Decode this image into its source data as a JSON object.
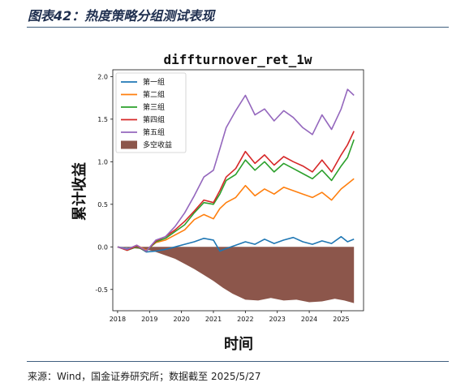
{
  "header": {
    "title": "图表42：热度策略分组测试表现"
  },
  "footer": {
    "source": "来源：Wind，国金证券研究所；数据截至 2025/5/27"
  },
  "colors": {
    "g1": "#1f77b4",
    "g2": "#ff7f0e",
    "g3": "#2ca02c",
    "g4": "#d62728",
    "g5": "#9467bd",
    "ls": "#8c564b",
    "header_rule": "#3f5f7f"
  },
  "chart_data": {
    "type": "line",
    "title": "diffturnover_ret_1w",
    "xlabel": "时间",
    "ylabel": "累计收益",
    "xlim": [
      2017.85,
      2025.7
    ],
    "ylim": [
      -0.75,
      2.08
    ],
    "x_ticks": [
      "2018",
      "2019",
      "2020",
      "2021",
      "2022",
      "2023",
      "2024",
      "2025"
    ],
    "y_ticks": [
      "-0.5",
      "0.0",
      "0.5",
      "1.0",
      "1.5",
      "2.0"
    ],
    "legend_position": "upper-left",
    "series": [
      {
        "name": "第一组",
        "kind": "line",
        "color": "#1f77b4",
        "x": [
          2018.0,
          2018.3,
          2018.6,
          2018.9,
          2019.2,
          2019.5,
          2019.8,
          2020.1,
          2020.4,
          2020.7,
          2021.0,
          2021.2,
          2021.4,
          2021.7,
          2022.0,
          2022.3,
          2022.6,
          2022.9,
          2023.2,
          2023.5,
          2023.8,
          2024.1,
          2024.4,
          2024.7,
          2025.0,
          2025.2,
          2025.4
        ],
        "y": [
          0.0,
          -0.02,
          0.01,
          -0.06,
          -0.05,
          -0.03,
          0.0,
          0.03,
          0.06,
          0.1,
          0.08,
          -0.05,
          -0.02,
          0.02,
          0.06,
          0.03,
          0.09,
          0.04,
          0.08,
          0.11,
          0.06,
          0.03,
          0.07,
          0.04,
          0.12,
          0.06,
          0.09
        ]
      },
      {
        "name": "第二组",
        "kind": "line",
        "color": "#ff7f0e",
        "x": [
          2018.0,
          2018.3,
          2018.6,
          2018.9,
          2019.2,
          2019.5,
          2019.8,
          2020.1,
          2020.4,
          2020.7,
          2021.0,
          2021.2,
          2021.4,
          2021.7,
          2022.0,
          2022.3,
          2022.6,
          2022.9,
          2023.2,
          2023.5,
          2023.8,
          2024.1,
          2024.4,
          2024.7,
          2025.0,
          2025.2,
          2025.4
        ],
        "y": [
          0.0,
          -0.03,
          0.02,
          -0.04,
          0.05,
          0.08,
          0.14,
          0.2,
          0.32,
          0.38,
          0.33,
          0.45,
          0.52,
          0.58,
          0.72,
          0.6,
          0.68,
          0.62,
          0.7,
          0.66,
          0.62,
          0.58,
          0.64,
          0.55,
          0.68,
          0.74,
          0.8
        ]
      },
      {
        "name": "第三组",
        "kind": "line",
        "color": "#2ca02c",
        "x": [
          2018.0,
          2018.3,
          2018.6,
          2018.9,
          2019.2,
          2019.5,
          2019.8,
          2020.1,
          2020.4,
          2020.7,
          2021.0,
          2021.2,
          2021.4,
          2021.7,
          2022.0,
          2022.3,
          2022.6,
          2022.9,
          2023.2,
          2023.5,
          2023.8,
          2024.1,
          2024.4,
          2024.7,
          2025.0,
          2025.2,
          2025.4
        ],
        "y": [
          0.0,
          -0.04,
          0.0,
          -0.05,
          0.06,
          0.1,
          0.18,
          0.26,
          0.4,
          0.52,
          0.5,
          0.62,
          0.78,
          0.85,
          1.02,
          0.9,
          1.0,
          0.88,
          0.98,
          0.92,
          0.86,
          0.8,
          0.9,
          0.78,
          0.95,
          1.05,
          1.26
        ]
      },
      {
        "name": "第四组",
        "kind": "line",
        "color": "#d62728",
        "x": [
          2018.0,
          2018.3,
          2018.6,
          2018.9,
          2019.2,
          2019.5,
          2019.8,
          2020.1,
          2020.4,
          2020.7,
          2021.0,
          2021.2,
          2021.4,
          2021.7,
          2022.0,
          2022.3,
          2022.6,
          2022.9,
          2023.2,
          2023.5,
          2023.8,
          2024.1,
          2024.4,
          2024.7,
          2025.0,
          2025.2,
          2025.4
        ],
        "y": [
          0.0,
          -0.04,
          0.01,
          -0.05,
          0.07,
          0.12,
          0.2,
          0.3,
          0.42,
          0.55,
          0.52,
          0.66,
          0.82,
          0.92,
          1.12,
          0.98,
          1.08,
          0.96,
          1.06,
          1.0,
          0.95,
          0.88,
          1.02,
          0.88,
          1.08,
          1.2,
          1.36
        ]
      },
      {
        "name": "第五组",
        "kind": "line",
        "color": "#9467bd",
        "x": [
          2018.0,
          2018.3,
          2018.6,
          2018.9,
          2019.2,
          2019.5,
          2019.8,
          2020.1,
          2020.4,
          2020.7,
          2021.0,
          2021.2,
          2021.4,
          2021.7,
          2022.0,
          2022.3,
          2022.6,
          2022.9,
          2023.2,
          2023.5,
          2023.8,
          2024.1,
          2024.4,
          2024.7,
          2025.0,
          2025.2,
          2025.4
        ],
        "y": [
          0.0,
          -0.03,
          0.02,
          -0.05,
          0.08,
          0.12,
          0.24,
          0.4,
          0.6,
          0.82,
          0.9,
          1.15,
          1.4,
          1.6,
          1.78,
          1.55,
          1.62,
          1.48,
          1.6,
          1.52,
          1.4,
          1.32,
          1.55,
          1.38,
          1.62,
          1.85,
          1.78
        ]
      },
      {
        "name": "多空收益",
        "kind": "area",
        "color": "#8c564b",
        "x": [
          2018.0,
          2018.3,
          2018.6,
          2018.9,
          2019.2,
          2019.5,
          2019.8,
          2020.1,
          2020.4,
          2020.7,
          2021.0,
          2021.3,
          2021.6,
          2022.0,
          2022.4,
          2022.8,
          2023.2,
          2023.6,
          2024.0,
          2024.4,
          2024.8,
          2025.1,
          2025.4
        ],
        "y": [
          0.0,
          -0.01,
          -0.02,
          -0.03,
          -0.06,
          -0.1,
          -0.14,
          -0.2,
          -0.26,
          -0.33,
          -0.4,
          -0.48,
          -0.55,
          -0.62,
          -0.63,
          -0.6,
          -0.63,
          -0.62,
          -0.65,
          -0.64,
          -0.61,
          -0.63,
          -0.66
        ]
      }
    ]
  }
}
